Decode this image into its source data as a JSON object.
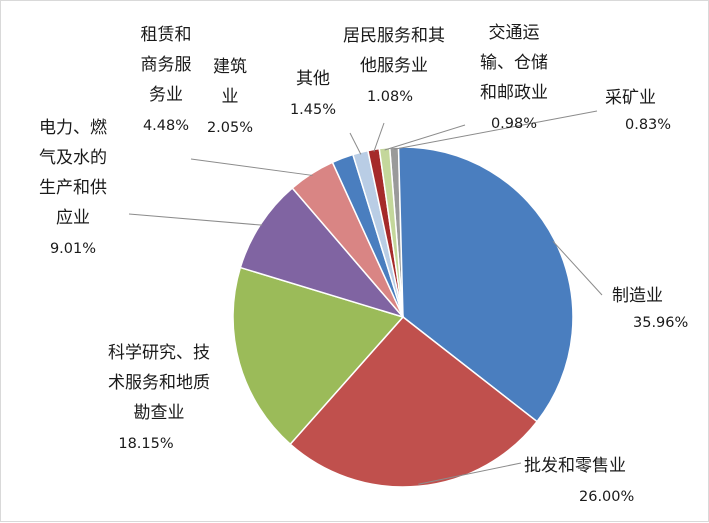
{
  "chart_data": {
    "type": "pie",
    "title": "",
    "slices": [
      {
        "label_lines": [
          "采矿业"
        ],
        "percent_label": "0.83%",
        "value": 0.83,
        "color": "#9a9a9a"
      },
      {
        "label_lines": [
          "制造业"
        ],
        "percent_label": "35.96%",
        "value": 35.96,
        "color": "#4a7ebf"
      },
      {
        "label_lines": [
          "批发和零售业"
        ],
        "percent_label": "26.00%",
        "value": 26.0,
        "color": "#c0504d"
      },
      {
        "label_lines": [
          "科学研究、技",
          "术服务和地质",
          "勘查业"
        ],
        "percent_label": "18.15%",
        "value": 18.15,
        "color": "#9bbb59"
      },
      {
        "label_lines": [
          "电力、燃",
          "气及水的",
          "生产和供",
          "应业"
        ],
        "percent_label": "9.01%",
        "value": 9.01,
        "color": "#8064a2"
      },
      {
        "label_lines": [
          "租赁和",
          "商务服",
          "务业"
        ],
        "percent_label": "4.48%",
        "value": 4.48,
        "color": "#d98584"
      },
      {
        "label_lines": [
          "建筑",
          "业"
        ],
        "percent_label": "2.05%",
        "value": 2.05,
        "color": "#4a7ebf"
      },
      {
        "label_lines": [
          "其他"
        ],
        "percent_label": "1.45%",
        "value": 1.45,
        "color": "#b9cde5"
      },
      {
        "label_lines": [
          "居民服务和其",
          "他服务业"
        ],
        "percent_label": "1.08%",
        "value": 1.08,
        "color": "#a52a2a"
      },
      {
        "label_lines": [
          "交通运",
          "输、仓储",
          "和邮政业"
        ],
        "percent_label": "0.98%",
        "value": 0.98,
        "color": "#c4d79b"
      }
    ],
    "legend": "none"
  }
}
